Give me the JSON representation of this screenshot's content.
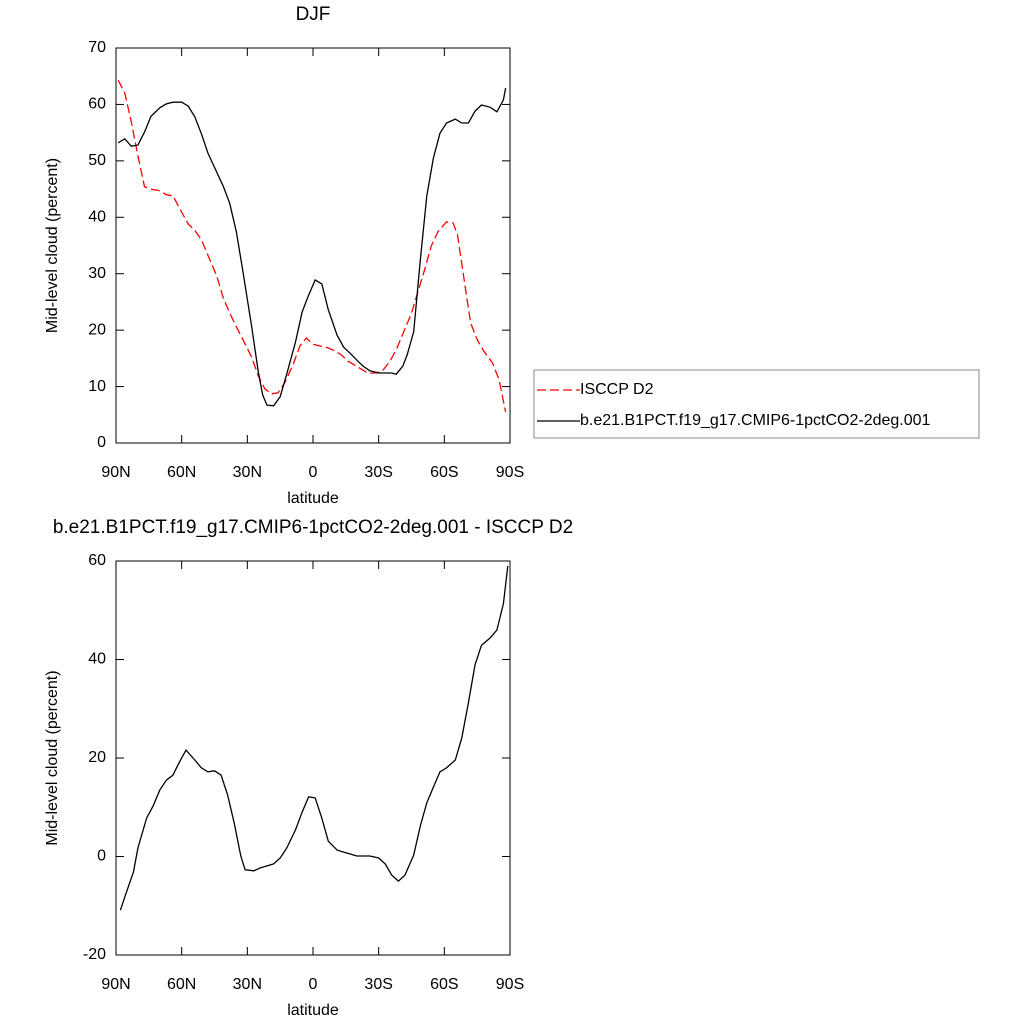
{
  "chart_data": [
    {
      "type": "line",
      "title": "DJF",
      "xlabel": "latitude",
      "ylabel": "Mid-level cloud (percent)",
      "xlim": [
        90,
        -90
      ],
      "xticks": [
        {
          "value": 90,
          "label": "90N"
        },
        {
          "value": 60,
          "label": "60N"
        },
        {
          "value": 30,
          "label": "30N"
        },
        0,
        {
          "value": -30,
          "label": "30S"
        },
        {
          "value": -60,
          "label": "60S"
        },
        {
          "value": -90,
          "label": "90S"
        }
      ],
      "ylim": [
        0,
        70
      ],
      "yticks": [
        0,
        10,
        20,
        30,
        40,
        50,
        60,
        70
      ],
      "legend": "outside right",
      "series": [
        {
          "name": "ISCCP D2",
          "color": "#ff0000",
          "style": "dashed",
          "x": [
            89,
            86,
            83,
            80,
            77,
            74,
            70,
            67,
            64,
            60,
            57,
            54,
            51,
            48,
            44,
            41,
            38,
            35,
            32,
            28,
            25,
            22,
            19,
            16,
            13,
            9,
            6,
            3,
            0,
            -3,
            -6,
            -9,
            -13,
            -16,
            -19,
            -22,
            -25,
            -29,
            -32,
            -35,
            -38,
            -41,
            -45,
            -48,
            -51,
            -54,
            -57,
            -61,
            -64,
            -66,
            -69,
            -72,
            -75,
            -78,
            -82,
            -85,
            -88
          ],
          "values": [
            64.3,
            62,
            56.9,
            50.9,
            45.4,
            45,
            44.7,
            44,
            43.8,
            40.9,
            38.8,
            37.7,
            36,
            33.3,
            29.6,
            25.7,
            23,
            20.6,
            18.3,
            15.2,
            11.9,
            9.6,
            8.7,
            8.9,
            10.6,
            14,
            17.2,
            18.6,
            17.5,
            17.2,
            17,
            16.5,
            15.6,
            14.5,
            13.8,
            13.1,
            12.4,
            12.4,
            12.9,
            14.4,
            16.5,
            19.3,
            23,
            26.9,
            30.7,
            34.9,
            37.4,
            39.2,
            39,
            36.9,
            29.1,
            21.3,
            18.3,
            16.3,
            14.2,
            11.2,
            5.5
          ]
        },
        {
          "name": "b.e21.B1PCT.f19_g17.CMIP6-1pctCO2-2deg.001",
          "color": "#000000",
          "style": "solid",
          "x": [
            89,
            86,
            83,
            80,
            77,
            74,
            70,
            67,
            64,
            60,
            57,
            54,
            51,
            48,
            44,
            41,
            38,
            35,
            32,
            28,
            25,
            23,
            21,
            18,
            15,
            12,
            8,
            5,
            2,
            -1,
            -4,
            -7,
            -11,
            -14,
            -17,
            -20,
            -23,
            -26,
            -30,
            -33,
            -36,
            -38,
            -41,
            -43,
            -46,
            -49,
            -52,
            -55,
            -58,
            -61,
            -65,
            -68,
            -71,
            -74,
            -77,
            -81,
            -84,
            -87,
            -88
          ],
          "values": [
            53.2,
            53.9,
            52.6,
            52.8,
            55.1,
            57.9,
            59.4,
            60.1,
            60.4,
            60.4,
            59.7,
            57.8,
            54.8,
            51.4,
            48,
            45.5,
            42.4,
            37.4,
            30.3,
            20.6,
            12.6,
            8.5,
            6.7,
            6.6,
            8.2,
            12.2,
            17.9,
            23.2,
            26.2,
            28.9,
            28.2,
            23.6,
            19.1,
            17,
            15.9,
            14.7,
            13.6,
            12.8,
            12.4,
            12.4,
            12.4,
            12.2,
            13.6,
            15.6,
            19.7,
            32.4,
            43.8,
            50.5,
            54.9,
            56.7,
            57.4,
            56.7,
            56.7,
            58.8,
            59.9,
            59.5,
            58.7,
            60.8,
            62.9
          ]
        }
      ]
    },
    {
      "type": "line",
      "title": "b.e21.B1PCT.f19_g17.CMIP6-1pctCO2-2deg.001 - ISCCP D2",
      "xlabel": "latitude",
      "ylabel": "Mid-level cloud (percent)",
      "xlim": [
        90,
        -90
      ],
      "xticks": [
        {
          "value": 90,
          "label": "90N"
        },
        {
          "value": 60,
          "label": "60N"
        },
        {
          "value": 30,
          "label": "30N"
        },
        0,
        {
          "value": -30,
          "label": "30S"
        },
        {
          "value": -60,
          "label": "60S"
        },
        {
          "value": -90,
          "label": "90S"
        }
      ],
      "ylim": [
        -20,
        60
      ],
      "yticks": [
        -20,
        0,
        20,
        40,
        60
      ],
      "series": [
        {
          "color": "#000000",
          "style": "solid",
          "x": [
            88,
            86,
            82,
            80,
            76,
            73,
            70,
            67,
            64,
            61,
            58,
            54,
            51,
            48,
            45,
            42,
            39,
            36,
            33,
            31,
            27,
            24,
            21,
            18,
            15,
            12,
            8,
            5,
            2,
            -1,
            -4,
            -7,
            -11,
            -14,
            -17,
            -20,
            -23,
            -26,
            -30,
            -33,
            -36,
            -39,
            -42,
            -46,
            -49,
            -52,
            -55,
            -58,
            -61,
            -65,
            -68,
            -71,
            -74,
            -77,
            -81,
            -84,
            -87,
            -89
          ],
          "values": [
            -10.9,
            -8.2,
            -3.1,
            1.7,
            7.8,
            10.3,
            13.5,
            15.5,
            16.5,
            19.2,
            21.6,
            19.6,
            18,
            17.2,
            17.4,
            16.5,
            12.5,
            6.8,
            0.1,
            -2.7,
            -2.9,
            -2.3,
            -1.9,
            -1.5,
            -0.3,
            1.7,
            5.4,
            9,
            12.1,
            11.9,
            7.8,
            3.1,
            1.3,
            0.9,
            0.5,
            0.1,
            0.1,
            0.1,
            -0.3,
            -1.5,
            -3.8,
            -5,
            -3.8,
            0.3,
            6.2,
            10.9,
            14.1,
            17.2,
            18,
            19.6,
            24.1,
            31.2,
            38.9,
            42.9,
            44.4,
            46,
            51.3,
            59
          ]
        }
      ]
    }
  ]
}
